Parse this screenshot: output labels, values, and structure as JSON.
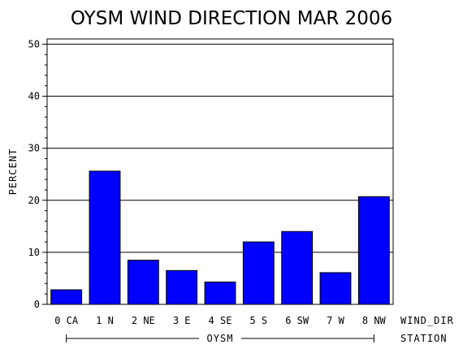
{
  "chart_data": {
    "type": "bar",
    "title": "OYSM WIND DIRECTION MAR 2006",
    "ylabel": "PERCENT",
    "xlabel": "WIND_DIR",
    "group_axis_label": "STATION",
    "group_label": "OYSM",
    "categories": [
      "0 CA",
      "1 N",
      "2 NE",
      "3 E",
      "4 SE",
      "5 S",
      "6 SW",
      "7 W",
      "8 NW"
    ],
    "values": [
      2.8,
      25.6,
      8.5,
      6.5,
      4.3,
      12.0,
      14.0,
      6.1,
      20.7
    ],
    "ylim": [
      0,
      51
    ],
    "yticks": [
      "0",
      "10",
      "20",
      "30",
      "40",
      "50"
    ],
    "grid": true,
    "bar_color": "#0000ff"
  }
}
